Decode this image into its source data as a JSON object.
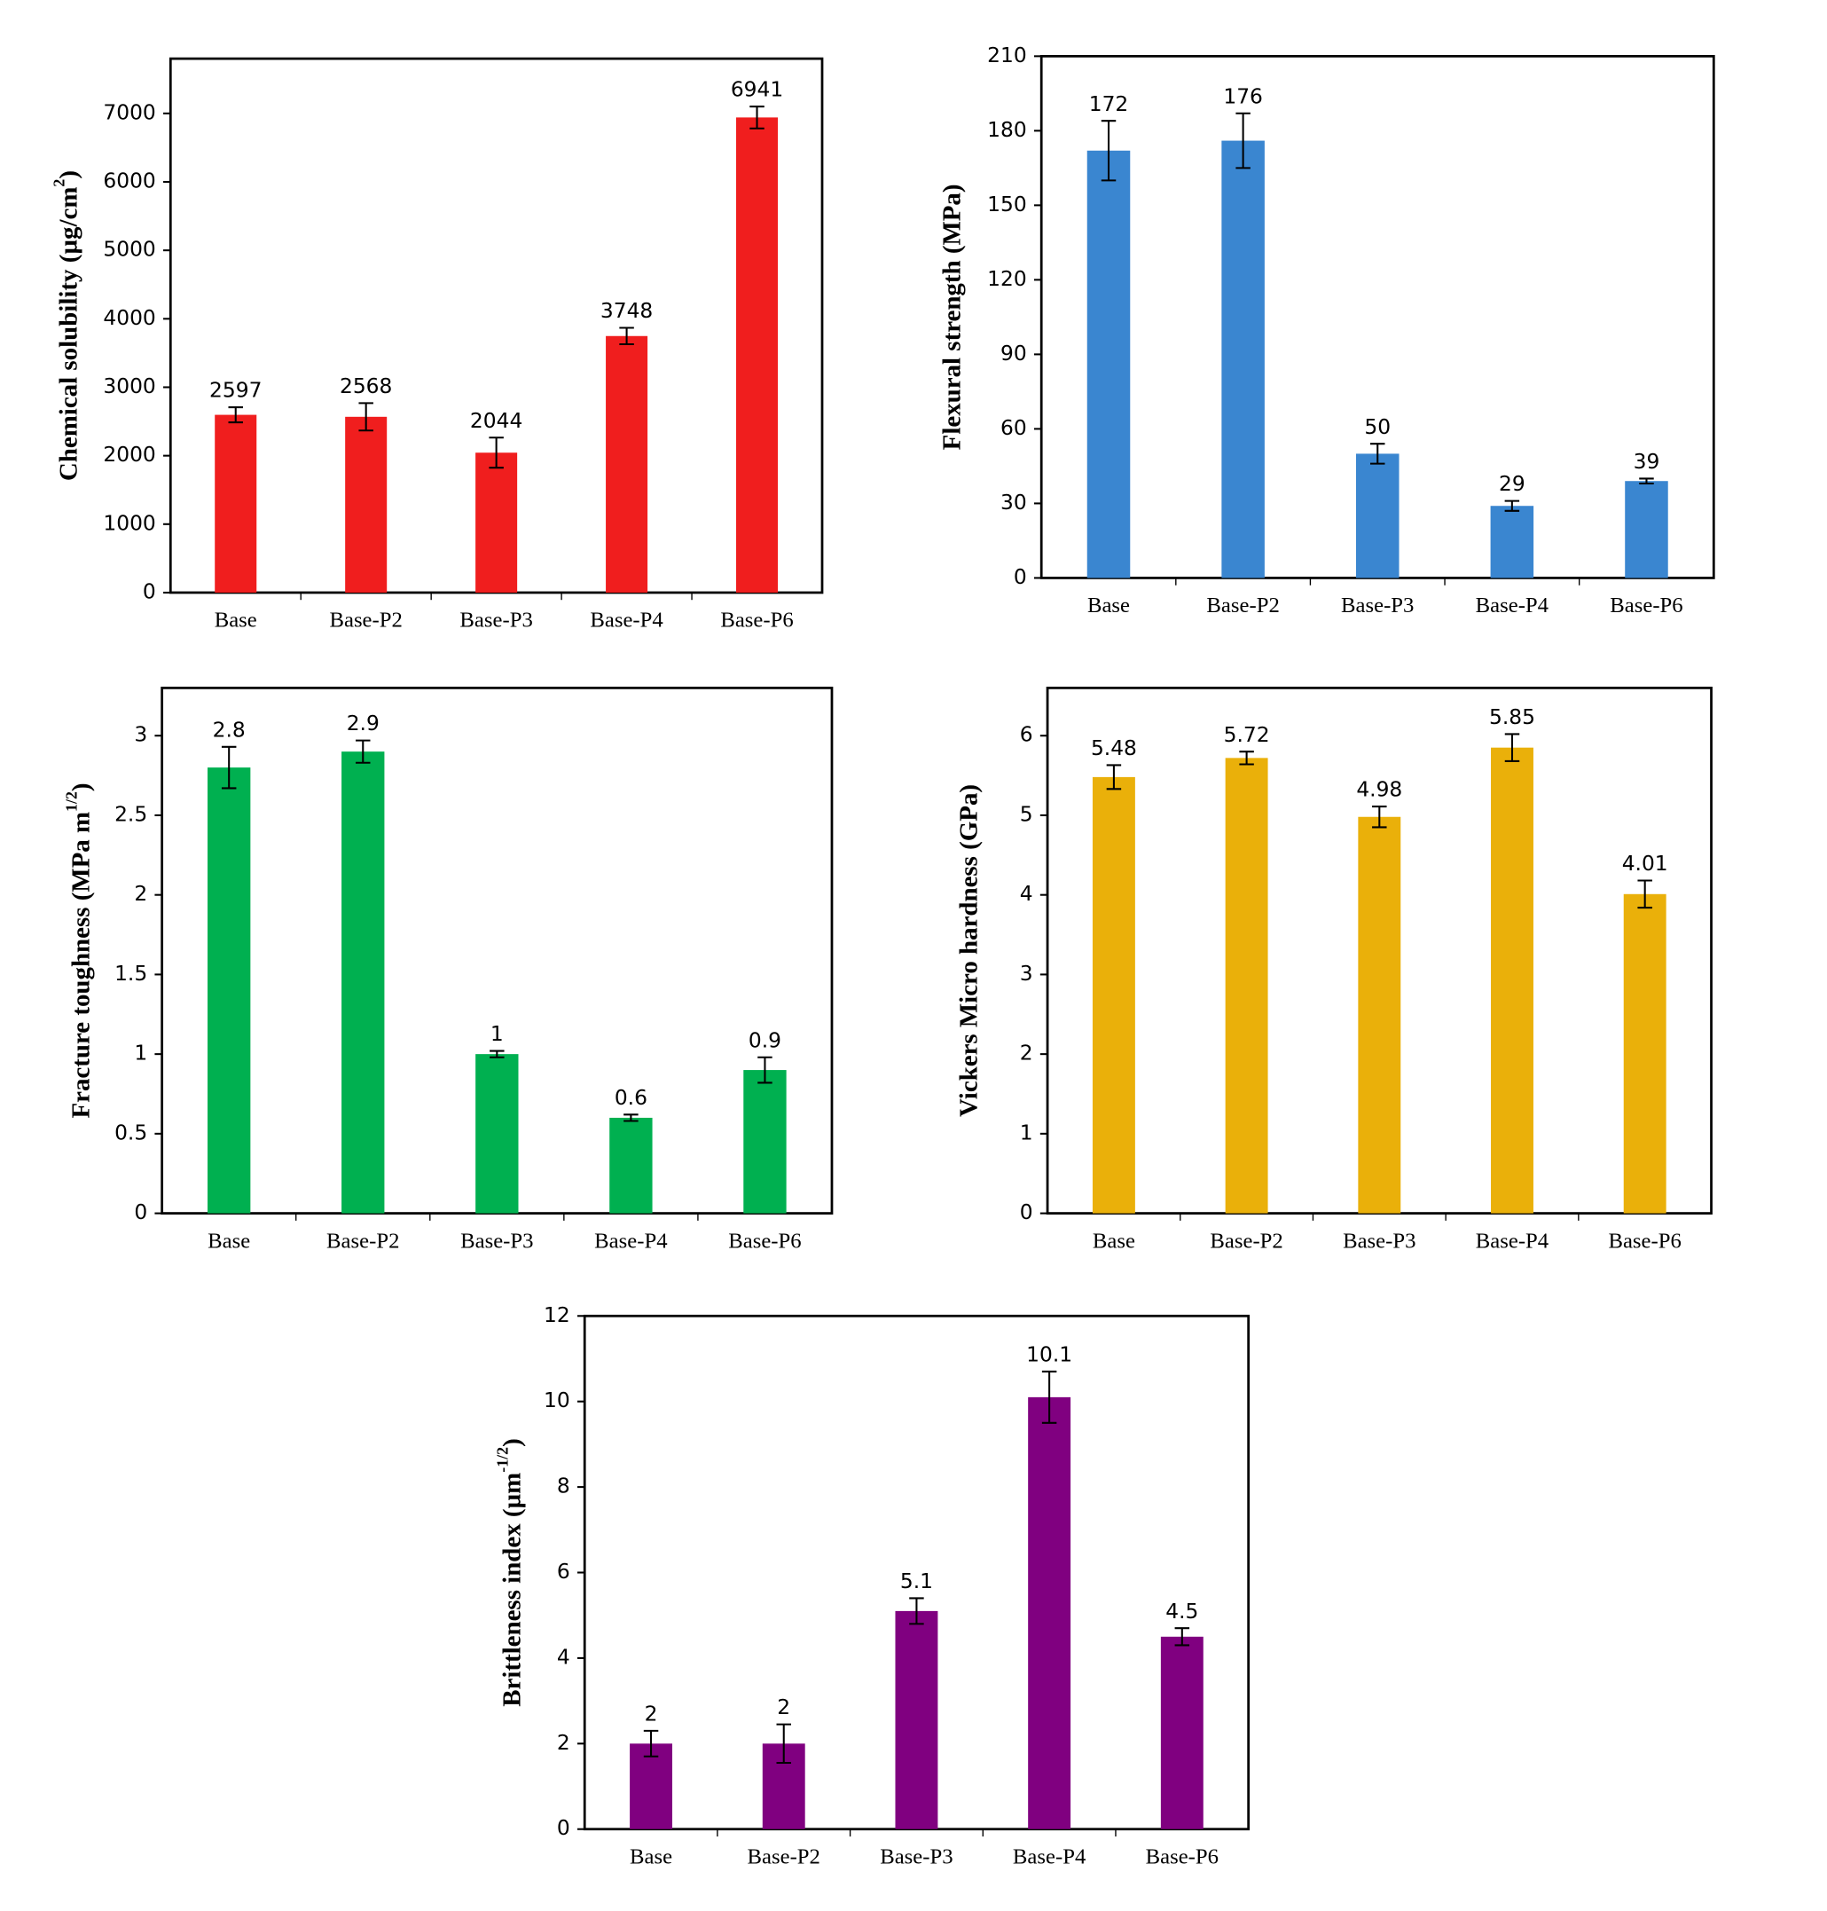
{
  "chart_data": [
    {
      "type": "bar",
      "ylabel": "Chemical solubility (µg/cm",
      "ylabel_sup": "2",
      "ylabel_end": ")",
      "color": "#f01e1e",
      "categories": [
        "Base",
        "Base-P2",
        "Base-P3",
        "Base-P4",
        "Base-P6"
      ],
      "values": [
        2597,
        2568,
        2044,
        3748,
        6941
      ],
      "errors": [
        110,
        200,
        220,
        120,
        160
      ],
      "ylim": [
        0,
        7800
      ],
      "yticks": [
        0,
        1000,
        2000,
        3000,
        4000,
        5000,
        6000,
        7000
      ]
    },
    {
      "type": "bar",
      "ylabel": "Flexural strength (MPa)",
      "color": "#3a86d0",
      "categories": [
        "Base",
        "Base-P2",
        "Base-P3",
        "Base-P4",
        "Base-P6"
      ],
      "values": [
        172,
        176,
        50,
        29,
        39
      ],
      "errors": [
        12,
        11,
        4,
        2,
        1
      ],
      "ylim": [
        0,
        210
      ],
      "yticks": [
        0,
        30,
        60,
        90,
        120,
        150,
        180,
        210
      ]
    },
    {
      "type": "bar",
      "ylabel": "Fracture toughness (MPa m",
      "ylabel_sup": "1/2",
      "ylabel_end": ")",
      "color": "#00b050",
      "categories": [
        "Base",
        "Base-P2",
        "Base-P3",
        "Base-P4",
        "Base-P6"
      ],
      "values": [
        2.8,
        2.9,
        1,
        0.6,
        0.9
      ],
      "errors": [
        0.13,
        0.07,
        0.02,
        0.02,
        0.08
      ],
      "ylim": [
        0,
        3.3
      ],
      "yticks": [
        0,
        0.5,
        1,
        1.5,
        2,
        2.5,
        3
      ]
    },
    {
      "type": "bar",
      "ylabel": "Vickers Micro hardness (GPa)",
      "color": "#eab00a",
      "categories": [
        "Base",
        "Base-P2",
        "Base-P3",
        "Base-P4",
        "Base-P6"
      ],
      "values": [
        5.48,
        5.72,
        4.98,
        5.85,
        4.01
      ],
      "errors": [
        0.15,
        0.08,
        0.13,
        0.17,
        0.17
      ],
      "ylim": [
        0,
        6.6
      ],
      "yticks": [
        0,
        1,
        2,
        3,
        4,
        5,
        6
      ]
    },
    {
      "type": "bar",
      "ylabel": "Brittleness index (µm",
      "ylabel_sup": "-1/2",
      "ylabel_end": ")",
      "color": "#800080",
      "categories": [
        "Base",
        "Base-P2",
        "Base-P3",
        "Base-P4",
        "Base-P6"
      ],
      "values": [
        2,
        2,
        5.1,
        10.1,
        4.5
      ],
      "errors": [
        0.3,
        0.45,
        0.3,
        0.6,
        0.2
      ],
      "ylim": [
        0,
        12
      ],
      "yticks": [
        0,
        2,
        4,
        6,
        8,
        10,
        12
      ]
    }
  ]
}
